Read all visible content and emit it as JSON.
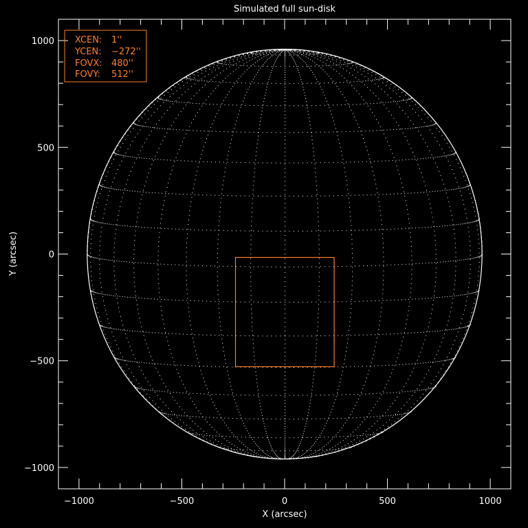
{
  "chart_data": {
    "type": "scatter",
    "title": "Simulated full sun-disk",
    "xlabel": "X (arcsec)",
    "ylabel": "Y (arcsec)",
    "xlim": [
      -1100,
      1100
    ],
    "ylim": [
      -1100,
      1100
    ],
    "x_ticks": [
      -1000,
      -500,
      0,
      500,
      1000
    ],
    "y_ticks": [
      -1000,
      -500,
      0,
      500,
      1000
    ],
    "x_tick_labels": [
      "−1000",
      "−500",
      "0",
      "500",
      "1000"
    ],
    "y_tick_labels": [
      "−1000",
      "−500",
      "0",
      "500",
      "1000"
    ],
    "minor_tick_step": 100,
    "disk_radius": 960,
    "grid_spacing_deg": 10,
    "b0_deg": 3.5,
    "field_of_view_box": {
      "x": [
        -239,
        241
      ],
      "y": [
        -528,
        -16
      ]
    },
    "legend": {
      "placement": "top-left",
      "items": [
        {
          "label": "XCEN:",
          "value": "1''"
        },
        {
          "label": "YCEN:",
          "value": "−272''"
        },
        {
          "label": "FOVX:",
          "value": "480''"
        },
        {
          "label": "FOVY:",
          "value": "512''"
        }
      ]
    },
    "colors": {
      "background": "#000000",
      "axes": "#ffffff",
      "grid": "#ffffff",
      "box": "#ff7f2a"
    }
  }
}
